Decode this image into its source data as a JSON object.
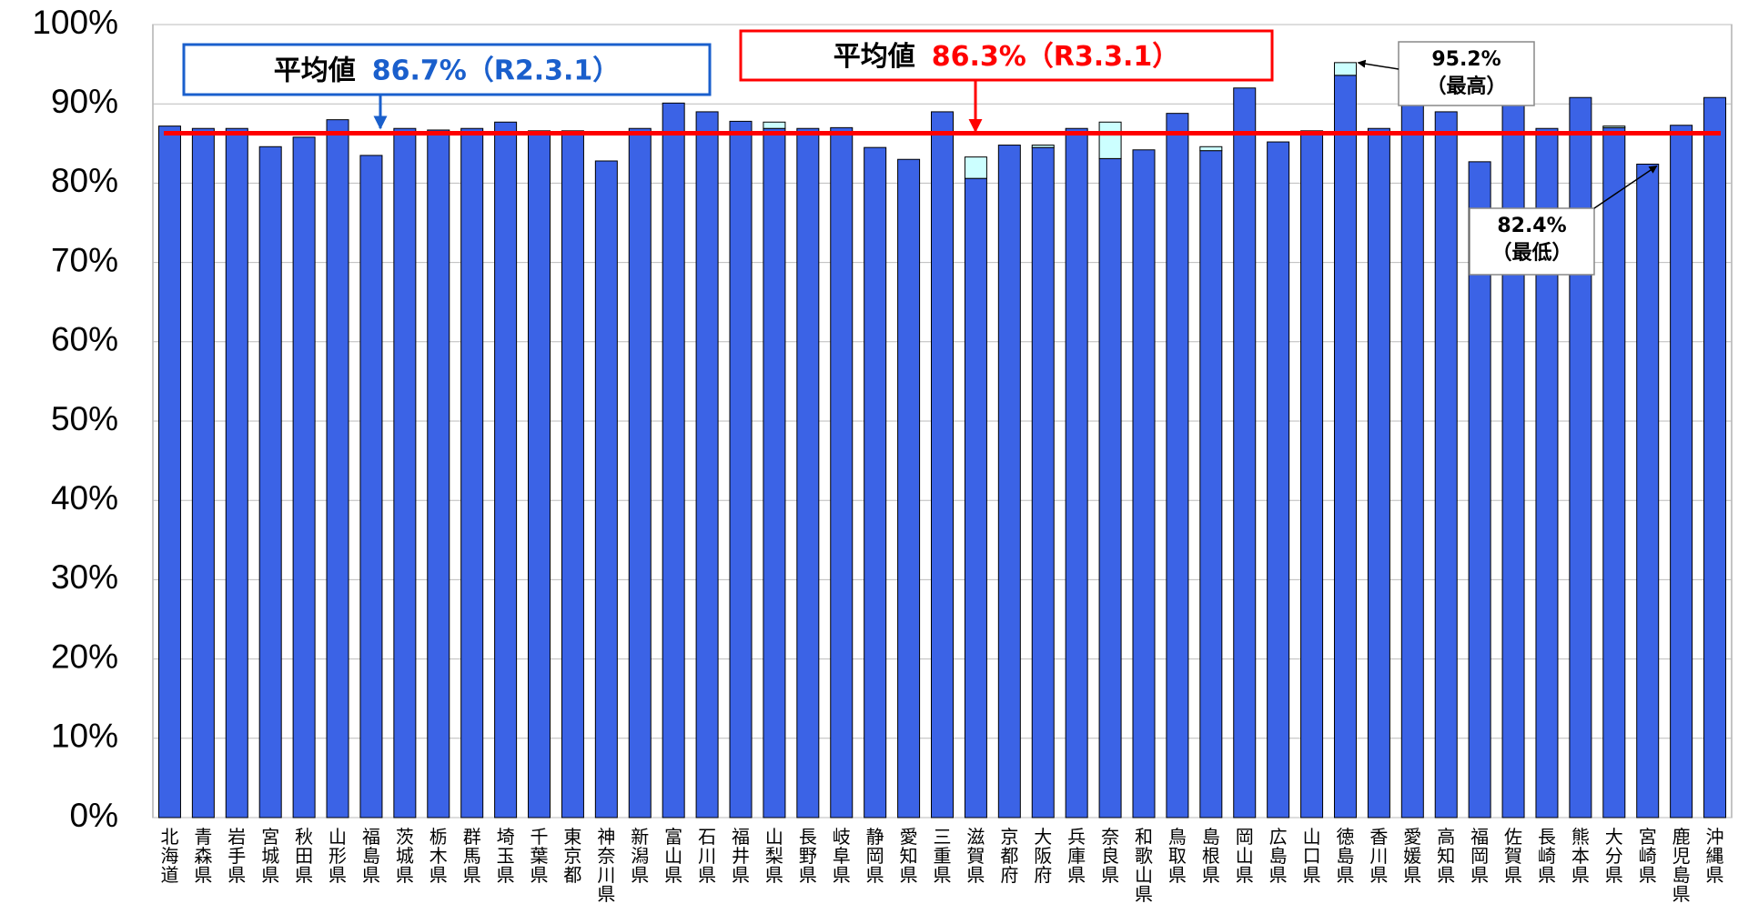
{
  "chart_data": {
    "type": "bar",
    "categories": [
      "北海道",
      "青森県",
      "岩手県",
      "宮城県",
      "秋田県",
      "山形県",
      "福島県",
      "茨城県",
      "栃木県",
      "群馬県",
      "埼玉県",
      "千葉県",
      "東京都",
      "神奈川県",
      "新潟県",
      "富山県",
      "石川県",
      "福井県",
      "山梨県",
      "長野県",
      "岐阜県",
      "静岡県",
      "愛知県",
      "三重県",
      "滋賀県",
      "京都府",
      "大阪府",
      "兵庫県",
      "奈良県",
      "和歌山県",
      "鳥取県",
      "島根県",
      "岡山県",
      "広島県",
      "山口県",
      "徳島県",
      "香川県",
      "愛媛県",
      "高知県",
      "福岡県",
      "佐賀県",
      "長崎県",
      "熊本県",
      "大分県",
      "宮崎県",
      "鹿児島県",
      "沖縄県"
    ],
    "series": [
      {
        "color": "#3b63e6",
        "values": [
          87.2,
          86.9,
          86.9,
          84.6,
          85.8,
          88.0,
          83.5,
          86.9,
          86.7,
          86.9,
          87.7,
          86.6,
          86.6,
          82.8,
          86.9,
          90.1,
          89.0,
          87.8,
          86.9,
          86.9,
          87.0,
          84.5,
          83.0,
          89.0,
          80.6,
          84.8,
          84.5,
          86.9,
          83.1,
          84.2,
          88.8,
          84.1,
          92.0,
          85.2,
          86.6,
          93.6,
          86.9,
          90.5,
          89.0,
          82.7,
          89.8,
          86.9,
          90.8,
          87.0,
          82.4,
          87.3,
          90.8
        ]
      },
      {
        "color": "#ccffff",
        "values": [
          0,
          0,
          0,
          0,
          0,
          0,
          0,
          0,
          0,
          0,
          0,
          0,
          0,
          0,
          0,
          0,
          0,
          0,
          0.8,
          0,
          0,
          0,
          0,
          0,
          2.7,
          0,
          0.3,
          0,
          4.6,
          0,
          0,
          0.5,
          0,
          0,
          0,
          1.6,
          0,
          0,
          0,
          0,
          0,
          0,
          0,
          0.2,
          0,
          0,
          0
        ]
      }
    ],
    "averages": [
      {
        "label": "平均値",
        "value": 86.7,
        "value_label": "86.7%（R2.3.1）",
        "color": "#1a5fcc"
      },
      {
        "label": "平均値",
        "value": 86.3,
        "value_label": "86.3%（R3.3.1）",
        "color": "#ff0000"
      }
    ],
    "annotations": [
      {
        "text": "95.2%",
        "note": "（最高）",
        "value": 95.2,
        "category": 35
      },
      {
        "text": "82.4%",
        "note": "（最低）",
        "value": 82.4,
        "category": 44
      }
    ],
    "ylim": [
      0,
      100
    ],
    "yticks": [
      {
        "value": 0,
        "label": "0%"
      },
      {
        "value": 10,
        "label": "10%"
      },
      {
        "value": 20,
        "label": "20%"
      },
      {
        "value": 30,
        "label": "30%"
      },
      {
        "value": 40,
        "label": "40%"
      },
      {
        "value": 50,
        "label": "50%"
      },
      {
        "value": 60,
        "label": "60%"
      },
      {
        "value": 70,
        "label": "70%"
      },
      {
        "value": 80,
        "label": "80%"
      },
      {
        "value": 90,
        "label": "90%"
      },
      {
        "value": 100,
        "label": "100%"
      }
    ],
    "grid": true
  }
}
